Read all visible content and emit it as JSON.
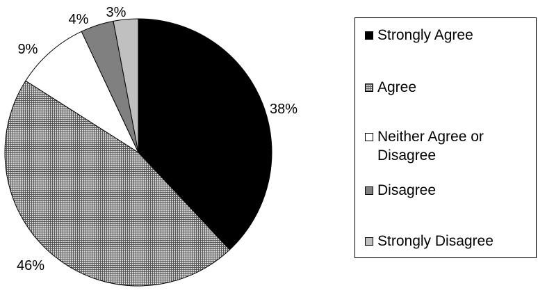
{
  "chart_data": {
    "type": "pie",
    "title": "",
    "slices": [
      {
        "label": "Strongly Agree",
        "value": 38,
        "value_label": "38%",
        "fill": "#000000",
        "pattern": "solid"
      },
      {
        "label": "Agree",
        "value": 46,
        "value_label": "46%",
        "fill": "#a8a8a8",
        "pattern": "grid"
      },
      {
        "label": "Neither Agree or Disagree",
        "value": 9,
        "value_label": "9%",
        "fill": "#ffffff",
        "pattern": "solid"
      },
      {
        "label": "Disagree",
        "value": 4,
        "value_label": "4%",
        "fill": "#808080",
        "pattern": "solid"
      },
      {
        "label": "Strongly Disagree",
        "value": 3,
        "value_label": "3%",
        "fill": "#c0c0c0",
        "pattern": "solid"
      }
    ],
    "start_angle": "12 o'clock",
    "direction": "clockwise",
    "legend_position": "right"
  }
}
